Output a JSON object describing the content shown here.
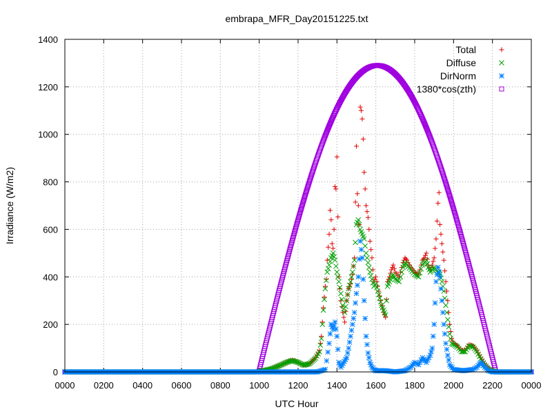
{
  "chart_data": {
    "type": "scatter",
    "title": "embrapa_MFR_Day20151225.txt",
    "xlabel": "UTC Hour",
    "ylabel": "Irradiance (W/m2)",
    "xlim": [
      0,
      24
    ],
    "ylim": [
      0,
      1400
    ],
    "x_ticks": [
      {
        "value": 0,
        "label": "0000"
      },
      {
        "value": 2,
        "label": "0200"
      },
      {
        "value": 4,
        "label": "0400"
      },
      {
        "value": 6,
        "label": "0600"
      },
      {
        "value": 8,
        "label": "0800"
      },
      {
        "value": 10,
        "label": "1000"
      },
      {
        "value": 12,
        "label": "1200"
      },
      {
        "value": 14,
        "label": "1400"
      },
      {
        "value": 16,
        "label": "1600"
      },
      {
        "value": 18,
        "label": "1800"
      },
      {
        "value": 20,
        "label": "2000"
      },
      {
        "value": 22,
        "label": "2200"
      },
      {
        "value": 24,
        "label": "0000"
      }
    ],
    "y_ticks": [
      0,
      200,
      400,
      600,
      800,
      1000,
      1200,
      1400
    ],
    "grid": true,
    "legend_position": "top-right",
    "series": [
      {
        "name": "Total",
        "color": "#e00000",
        "marker": "plus",
        "points": [
          [
            0.0,
            0
          ],
          [
            2.0,
            0
          ],
          [
            4.0,
            0
          ],
          [
            6.0,
            0
          ],
          [
            8.0,
            0
          ],
          [
            9.9,
            0
          ],
          [
            10.2,
            5
          ],
          [
            10.6,
            12
          ],
          [
            11.0,
            25
          ],
          [
            11.4,
            40
          ],
          [
            11.7,
            50
          ],
          [
            12.0,
            40
          ],
          [
            12.3,
            28
          ],
          [
            12.6,
            35
          ],
          [
            12.9,
            60
          ],
          [
            13.1,
            90
          ],
          [
            13.2,
            150
          ],
          [
            13.3,
            270
          ],
          [
            13.4,
            360
          ],
          [
            13.45,
            390
          ],
          [
            13.5,
            470
          ],
          [
            13.6,
            580
          ],
          [
            13.65,
            680
          ],
          [
            13.7,
            640
          ],
          [
            13.75,
            540
          ],
          [
            13.8,
            520
          ],
          [
            13.85,
            600
          ],
          [
            13.9,
            780
          ],
          [
            13.95,
            770
          ],
          [
            14.0,
            905
          ],
          [
            14.1,
            400
          ],
          [
            14.2,
            300
          ],
          [
            14.3,
            250
          ],
          [
            14.4,
            210
          ],
          [
            14.5,
            300
          ],
          [
            14.6,
            350
          ],
          [
            14.7,
            370
          ],
          [
            14.8,
            410
          ],
          [
            14.9,
            480
          ],
          [
            15.0,
            950
          ],
          [
            15.05,
            750
          ],
          [
            15.1,
            700
          ],
          [
            15.15,
            620
          ],
          [
            15.2,
            1115
          ],
          [
            15.25,
            1100
          ],
          [
            15.3,
            1065
          ],
          [
            15.35,
            980
          ],
          [
            15.4,
            840
          ],
          [
            15.5,
            700
          ],
          [
            15.6,
            650
          ],
          [
            15.7,
            550
          ],
          [
            15.8,
            480
          ],
          [
            15.9,
            380
          ],
          [
            16.0,
            400
          ],
          [
            16.1,
            360
          ],
          [
            16.2,
            320
          ],
          [
            16.3,
            280
          ],
          [
            16.4,
            250
          ],
          [
            16.5,
            230
          ],
          [
            16.6,
            380
          ],
          [
            16.7,
            400
          ],
          [
            16.8,
            430
          ],
          [
            16.9,
            450
          ],
          [
            17.0,
            420
          ],
          [
            17.2,
            400
          ],
          [
            17.4,
            460
          ],
          [
            17.5,
            480
          ],
          [
            17.6,
            470
          ],
          [
            17.8,
            440
          ],
          [
            18.0,
            420
          ],
          [
            18.2,
            410
          ],
          [
            18.4,
            470
          ],
          [
            18.5,
            480
          ],
          [
            18.6,
            500
          ],
          [
            18.7,
            450
          ],
          [
            18.8,
            430
          ],
          [
            18.9,
            450
          ],
          [
            19.0,
            480
          ],
          [
            19.1,
            560
          ],
          [
            19.2,
            710
          ],
          [
            19.25,
            755
          ],
          [
            19.3,
            620
          ],
          [
            19.4,
            540
          ],
          [
            19.5,
            470
          ],
          [
            19.6,
            380
          ],
          [
            19.7,
            300
          ],
          [
            19.8,
            200
          ],
          [
            19.9,
            140
          ],
          [
            20.0,
            120
          ],
          [
            20.2,
            110
          ],
          [
            20.4,
            90
          ],
          [
            20.6,
            90
          ],
          [
            20.8,
            115
          ],
          [
            21.0,
            110
          ],
          [
            21.2,
            90
          ],
          [
            21.4,
            60
          ],
          [
            21.6,
            35
          ],
          [
            21.8,
            15
          ],
          [
            22.0,
            5
          ],
          [
            22.2,
            0
          ],
          [
            23.0,
            0
          ],
          [
            24.0,
            0
          ]
        ]
      },
      {
        "name": "Diffuse",
        "color": "#00a000",
        "marker": "cross",
        "points": [
          [
            0.0,
            0
          ],
          [
            2.0,
            0
          ],
          [
            4.0,
            0
          ],
          [
            6.0,
            0
          ],
          [
            8.0,
            0
          ],
          [
            9.9,
            0
          ],
          [
            10.2,
            5
          ],
          [
            10.6,
            12
          ],
          [
            11.0,
            25
          ],
          [
            11.4,
            40
          ],
          [
            11.7,
            48
          ],
          [
            12.0,
            40
          ],
          [
            12.3,
            28
          ],
          [
            12.6,
            35
          ],
          [
            12.9,
            58
          ],
          [
            13.1,
            85
          ],
          [
            13.2,
            140
          ],
          [
            13.3,
            260
          ],
          [
            13.4,
            350
          ],
          [
            13.5,
            420
          ],
          [
            13.6,
            450
          ],
          [
            13.7,
            480
          ],
          [
            13.8,
            500
          ],
          [
            13.9,
            470
          ],
          [
            14.0,
            420
          ],
          [
            14.1,
            380
          ],
          [
            14.2,
            330
          ],
          [
            14.3,
            280
          ],
          [
            14.4,
            250
          ],
          [
            14.5,
            300
          ],
          [
            14.6,
            350
          ],
          [
            14.7,
            380
          ],
          [
            14.8,
            420
          ],
          [
            14.9,
            470
          ],
          [
            15.0,
            620
          ],
          [
            15.1,
            640
          ],
          [
            15.2,
            600
          ],
          [
            15.3,
            580
          ],
          [
            15.4,
            560
          ],
          [
            15.5,
            500
          ],
          [
            15.6,
            460
          ],
          [
            15.7,
            420
          ],
          [
            15.8,
            390
          ],
          [
            15.9,
            360
          ],
          [
            16.0,
            370
          ],
          [
            16.1,
            340
          ],
          [
            16.2,
            310
          ],
          [
            16.3,
            280
          ],
          [
            16.4,
            260
          ],
          [
            16.5,
            240
          ],
          [
            16.6,
            360
          ],
          [
            16.7,
            380
          ],
          [
            16.8,
            400
          ],
          [
            16.9,
            410
          ],
          [
            17.0,
            390
          ],
          [
            17.2,
            380
          ],
          [
            17.4,
            440
          ],
          [
            17.5,
            460
          ],
          [
            17.6,
            450
          ],
          [
            17.8,
            430
          ],
          [
            18.0,
            410
          ],
          [
            18.2,
            400
          ],
          [
            18.4,
            450
          ],
          [
            18.5,
            460
          ],
          [
            18.6,
            470
          ],
          [
            18.7,
            440
          ],
          [
            18.8,
            420
          ],
          [
            18.9,
            430
          ],
          [
            19.0,
            440
          ],
          [
            19.1,
            430
          ],
          [
            19.2,
            420
          ],
          [
            19.3,
            410
          ],
          [
            19.4,
            380
          ],
          [
            19.5,
            340
          ],
          [
            19.6,
            280
          ],
          [
            19.7,
            220
          ],
          [
            19.8,
            160
          ],
          [
            19.9,
            120
          ],
          [
            20.0,
            115
          ],
          [
            20.2,
            105
          ],
          [
            20.4,
            85
          ],
          [
            20.6,
            85
          ],
          [
            20.8,
            110
          ],
          [
            21.0,
            105
          ],
          [
            21.2,
            85
          ],
          [
            21.4,
            55
          ],
          [
            21.6,
            30
          ],
          [
            21.8,
            12
          ],
          [
            22.0,
            4
          ],
          [
            22.2,
            0
          ],
          [
            23.0,
            0
          ],
          [
            24.0,
            0
          ]
        ]
      },
      {
        "name": "DirNorm",
        "color": "#0080ff",
        "marker": "star",
        "points": [
          [
            0.0,
            0
          ],
          [
            2.0,
            0
          ],
          [
            4.0,
            0
          ],
          [
            6.0,
            0
          ],
          [
            8.0,
            0
          ],
          [
            9.9,
            0
          ],
          [
            10.5,
            0
          ],
          [
            11.0,
            0
          ],
          [
            11.5,
            0
          ],
          [
            12.0,
            0
          ],
          [
            12.5,
            0
          ],
          [
            13.0,
            0
          ],
          [
            13.2,
            5
          ],
          [
            13.4,
            10
          ],
          [
            13.6,
            120
          ],
          [
            13.7,
            200
          ],
          [
            13.8,
            180
          ],
          [
            13.9,
            210
          ],
          [
            14.0,
            150
          ],
          [
            14.1,
            40
          ],
          [
            14.2,
            20
          ],
          [
            14.5,
            60
          ],
          [
            14.6,
            100
          ],
          [
            14.7,
            150
          ],
          [
            14.8,
            200
          ],
          [
            14.9,
            250
          ],
          [
            15.0,
            330
          ],
          [
            15.1,
            400
          ],
          [
            15.2,
            550
          ],
          [
            15.3,
            480
          ],
          [
            15.4,
            300
          ],
          [
            15.5,
            150
          ],
          [
            15.6,
            80
          ],
          [
            15.7,
            40
          ],
          [
            15.8,
            20
          ],
          [
            15.9,
            10
          ],
          [
            16.0,
            5
          ],
          [
            16.5,
            5
          ],
          [
            17.0,
            0
          ],
          [
            17.5,
            5
          ],
          [
            17.8,
            20
          ],
          [
            18.0,
            40
          ],
          [
            18.2,
            30
          ],
          [
            18.4,
            60
          ],
          [
            18.6,
            40
          ],
          [
            18.8,
            70
          ],
          [
            18.9,
            100
          ],
          [
            19.0,
            200
          ],
          [
            19.1,
            380
          ],
          [
            19.2,
            440
          ],
          [
            19.3,
            400
          ],
          [
            19.4,
            300
          ],
          [
            19.5,
            200
          ],
          [
            19.6,
            120
          ],
          [
            19.7,
            70
          ],
          [
            19.8,
            30
          ],
          [
            20.0,
            10
          ],
          [
            20.5,
            5
          ],
          [
            21.0,
            10
          ],
          [
            21.2,
            20
          ],
          [
            21.4,
            40
          ],
          [
            21.6,
            20
          ],
          [
            21.8,
            5
          ],
          [
            22.0,
            0
          ],
          [
            23.0,
            0
          ],
          [
            24.0,
            0
          ]
        ]
      },
      {
        "name": "1380*cos(zth)",
        "color": "#a000e0",
        "marker": "square",
        "noon": 16.08,
        "halfwidth": 6.1,
        "peak": 1290
      }
    ]
  }
}
